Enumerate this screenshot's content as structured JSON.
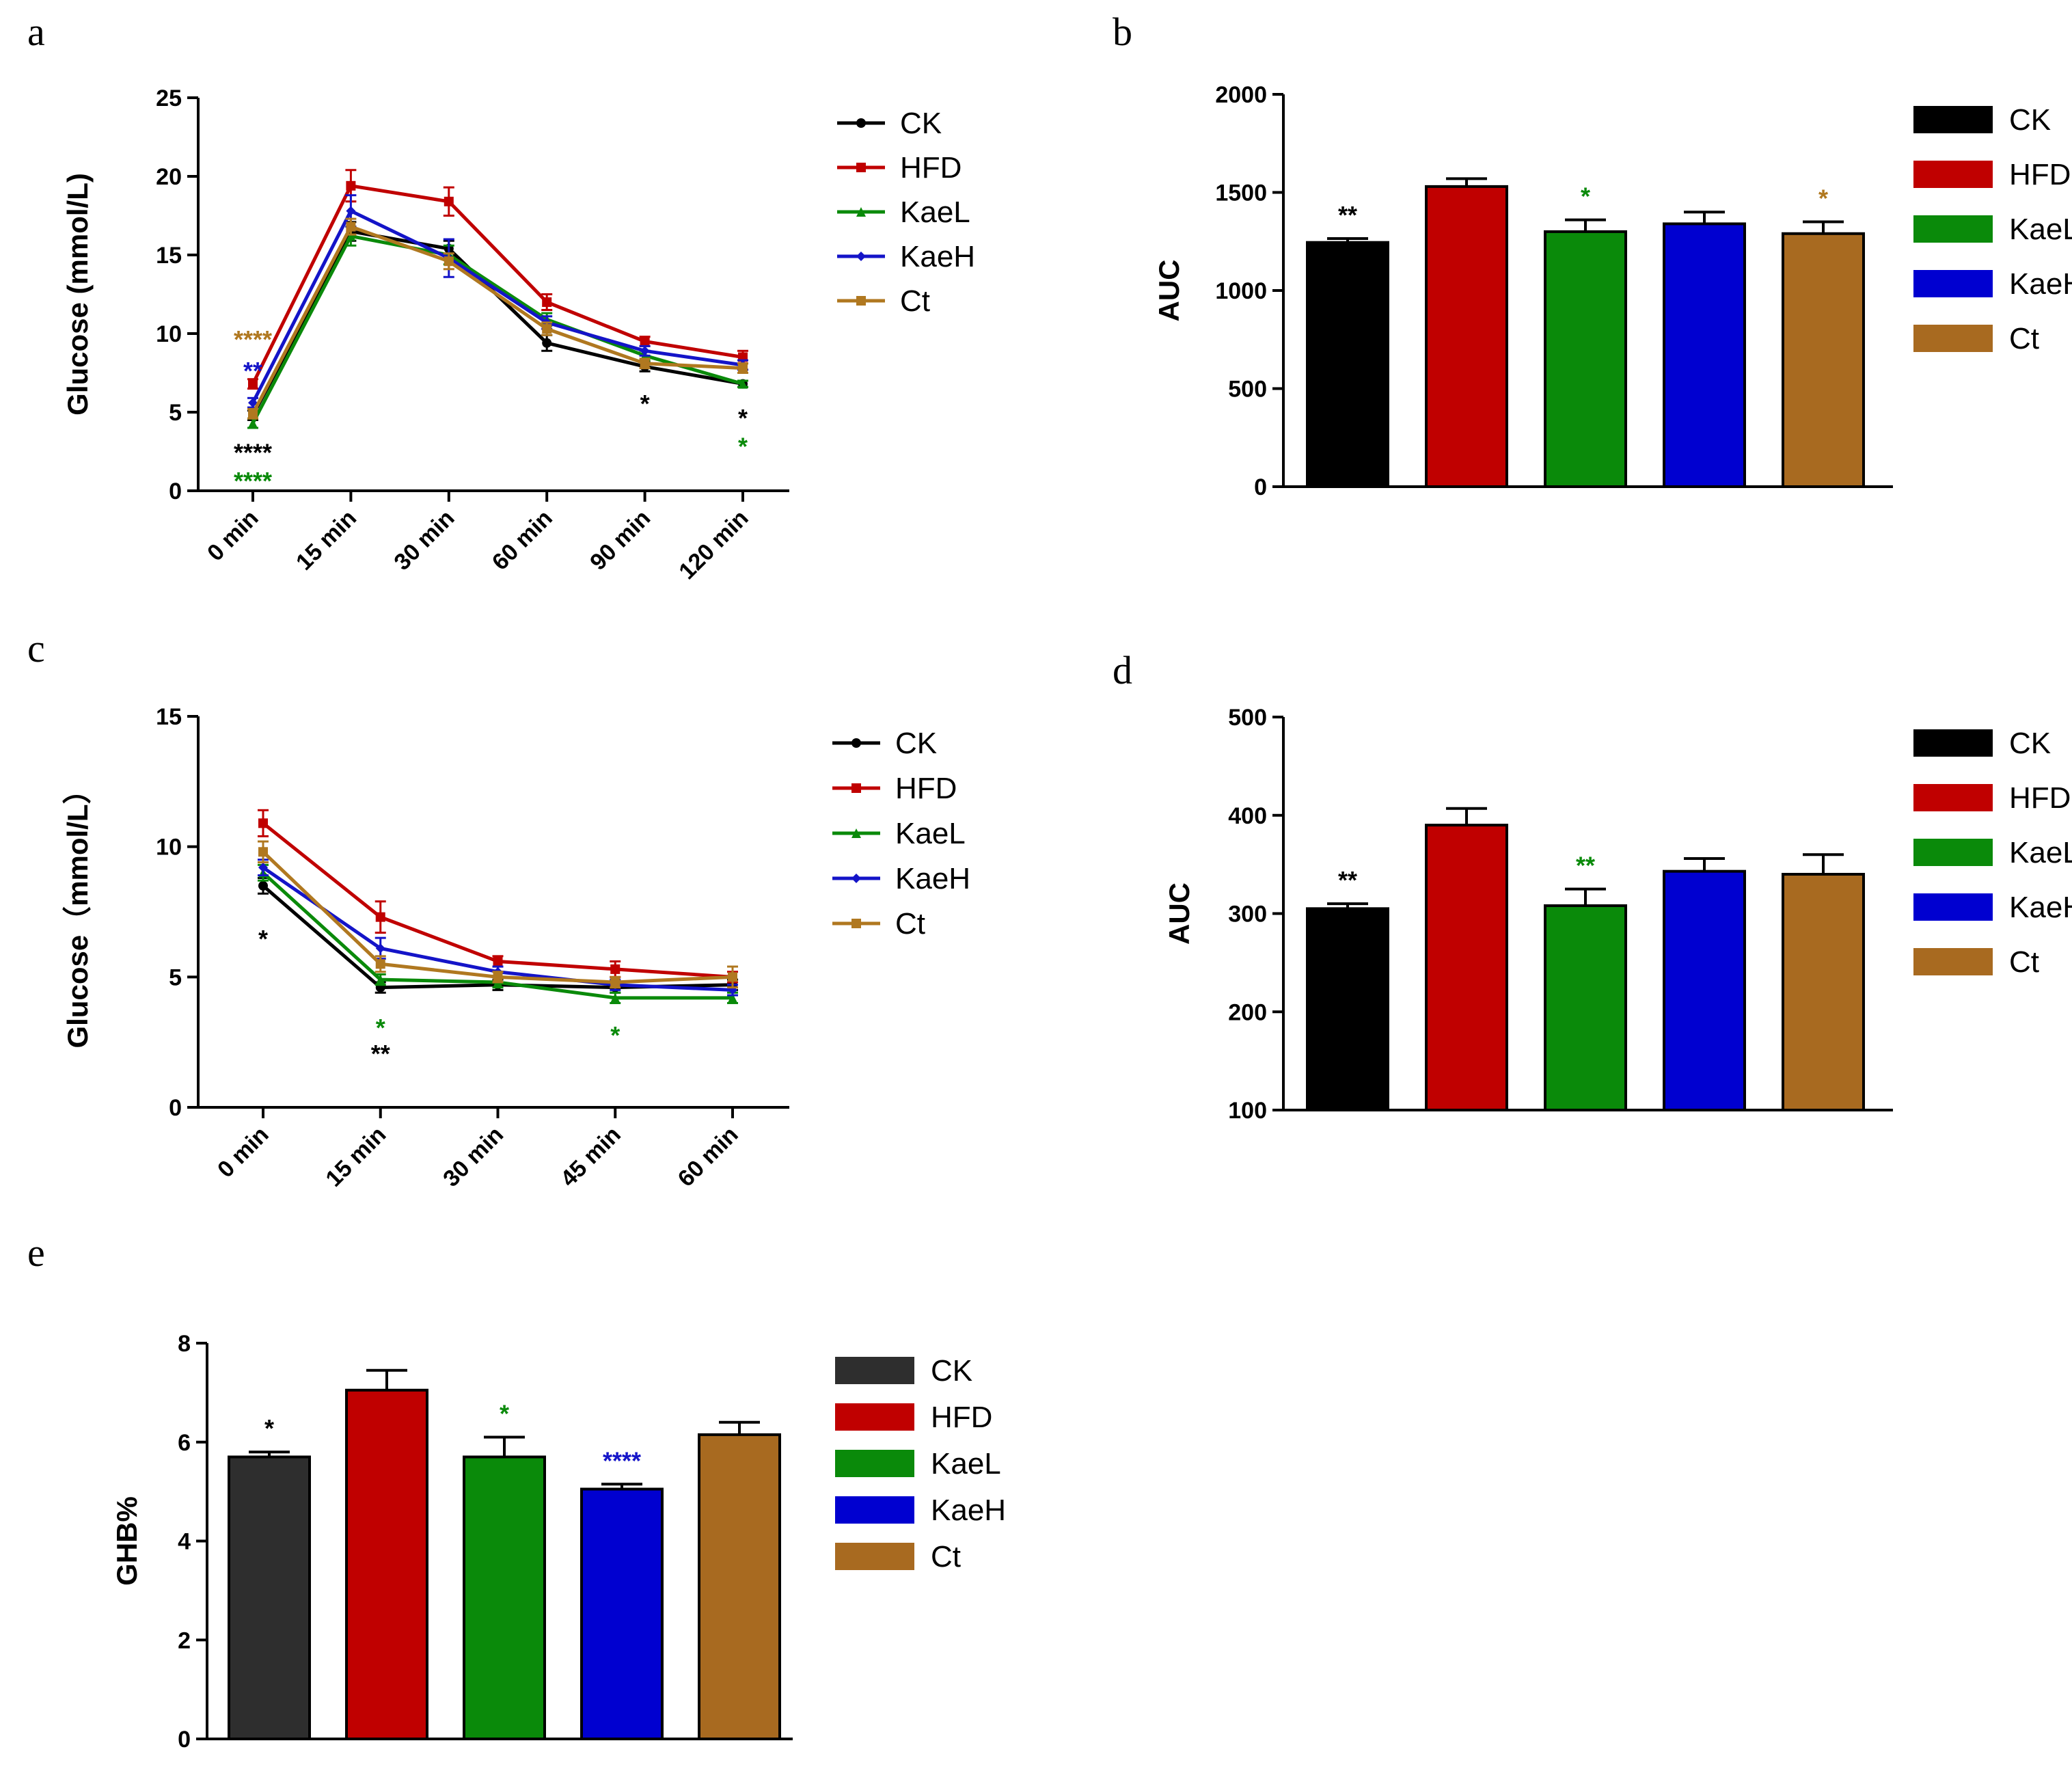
{
  "panel_labels": [
    "a",
    "b",
    "c",
    "d",
    "e"
  ],
  "chart_data": [
    {
      "panel": "a",
      "type": "line",
      "title": "",
      "xlabel": "",
      "ylabel": "Glucose (mmol/L)",
      "categories": [
        "0 min",
        "15 min",
        "30 min",
        "60 min",
        "90 min",
        "120 min"
      ],
      "ylim": [
        0,
        25
      ],
      "yticks": [
        "0",
        "5",
        "10",
        "15",
        "20",
        "25"
      ],
      "series": [
        {
          "name": "CK",
          "color": "#000000",
          "marker": "circle",
          "values": [
            4.8,
            16.5,
            15.4,
            9.4,
            7.9,
            6.8
          ],
          "errors": [
            0.3,
            0.6,
            0.5,
            0.5,
            0.3,
            0.2
          ]
        },
        {
          "name": "HFD",
          "color": "#c00000",
          "marker": "square",
          "values": [
            6.8,
            19.4,
            18.4,
            12.0,
            9.5,
            8.5
          ],
          "errors": [
            0.3,
            1.0,
            0.9,
            0.5,
            0.3,
            0.4
          ]
        },
        {
          "name": "KaeL",
          "color": "#0a8a0a",
          "marker": "triangle",
          "values": [
            4.3,
            16.2,
            15.0,
            10.9,
            8.6,
            6.8
          ],
          "errors": [
            0.3,
            0.6,
            0.6,
            0.4,
            0.3,
            0.2
          ]
        },
        {
          "name": "KaeH",
          "color": "#1414c8",
          "marker": "diamond",
          "values": [
            5.6,
            17.8,
            14.8,
            10.7,
            8.9,
            8.0
          ],
          "errors": [
            0.3,
            1.0,
            1.2,
            0.4,
            0.3,
            0.3
          ]
        },
        {
          "name": "Ct",
          "color": "#b07820",
          "marker": "square",
          "values": [
            4.9,
            16.8,
            14.6,
            10.3,
            8.1,
            7.8
          ],
          "errors": [
            0.3,
            0.5,
            0.5,
            0.4,
            0.3,
            0.3
          ]
        }
      ],
      "annotations": [
        {
          "text": "****",
          "color": "#b07820",
          "category": 0,
          "y": 9.7
        },
        {
          "text": "**",
          "color": "#1414c8",
          "category": 0,
          "y": 7.7
        },
        {
          "text": "****",
          "color": "#000000",
          "category": 0,
          "y": 2.5
        },
        {
          "text": "****",
          "color": "#0a8a0a",
          "category": 0,
          "y": 0.7
        },
        {
          "text": "*",
          "color": "#000000",
          "category": 4,
          "y": 5.6
        },
        {
          "text": "*",
          "color": "#000000",
          "category": 5,
          "y": 4.7
        },
        {
          "text": "*",
          "color": "#0a8a0a",
          "category": 5,
          "y": 2.9
        }
      ]
    },
    {
      "panel": "b",
      "type": "bar",
      "title": "",
      "xlabel": "",
      "ylabel": "AUC",
      "categories": [
        "CK",
        "HFD",
        "KaeL",
        "KaeH",
        "Ct"
      ],
      "values": [
        1245,
        1530,
        1300,
        1340,
        1290
      ],
      "errors": [
        20,
        40,
        60,
        60,
        60
      ],
      "colors": [
        "#000000",
        "#c00000",
        "#0a8a0a",
        "#0000d0",
        "#a86a20"
      ],
      "ylim": [
        0,
        2000
      ],
      "yticks": [
        "0",
        "500",
        "1000",
        "1500",
        "2000"
      ],
      "annotations": [
        {
          "text": "**",
          "color": "#000000",
          "index": 0
        },
        {
          "text": "*",
          "color": "#0a8a0a",
          "index": 2
        },
        {
          "text": "*",
          "color": "#b07820",
          "index": 4
        }
      ]
    },
    {
      "panel": "c",
      "type": "line",
      "title": "",
      "xlabel": "",
      "ylabel": "Glucose（mmol/L）",
      "categories": [
        "0 min",
        "15 min",
        "30 min",
        "45 min",
        "60 min"
      ],
      "ylim": [
        0,
        15
      ],
      "yticks": [
        "0",
        "5",
        "10",
        "15"
      ],
      "series": [
        {
          "name": "CK",
          "color": "#000000",
          "marker": "circle",
          "values": [
            8.5,
            4.6,
            4.7,
            4.6,
            4.7
          ],
          "errors": [
            0.3,
            0.2,
            0.2,
            0.2,
            0.2
          ]
        },
        {
          "name": "HFD",
          "color": "#c00000",
          "marker": "square",
          "values": [
            10.9,
            7.3,
            5.6,
            5.3,
            5.0
          ],
          "errors": [
            0.5,
            0.6,
            0.2,
            0.3,
            0.2
          ]
        },
        {
          "name": "KaeL",
          "color": "#0a8a0a",
          "marker": "triangle",
          "values": [
            9.0,
            4.9,
            4.8,
            4.2,
            4.2
          ],
          "errors": [
            0.3,
            0.2,
            0.2,
            0.2,
            0.2
          ]
        },
        {
          "name": "KaeH",
          "color": "#1414c8",
          "marker": "diamond",
          "values": [
            9.2,
            6.1,
            5.2,
            4.7,
            4.5
          ],
          "errors": [
            0.3,
            0.4,
            0.2,
            0.2,
            0.2
          ]
        },
        {
          "name": "Ct",
          "color": "#b07820",
          "marker": "square",
          "values": [
            9.8,
            5.5,
            5.0,
            4.8,
            5.0
          ],
          "errors": [
            0.4,
            0.3,
            0.2,
            0.2,
            0.4
          ]
        }
      ],
      "annotations": [
        {
          "text": "*",
          "color": "#000000",
          "category": 0,
          "y": 6.5
        },
        {
          "text": "*",
          "color": "#0a8a0a",
          "category": 1,
          "y": 3.1
        },
        {
          "text": "**",
          "color": "#000000",
          "category": 1,
          "y": 2.1
        },
        {
          "text": "*",
          "color": "#0a8a0a",
          "category": 3,
          "y": 2.8
        }
      ]
    },
    {
      "panel": "d",
      "type": "bar",
      "title": "",
      "xlabel": "",
      "ylabel": "AUC",
      "categories": [
        "CK",
        "HFD",
        "KaeL",
        "KaeH",
        "Ct"
      ],
      "values": [
        305,
        390,
        308,
        343,
        340
      ],
      "errors": [
        5,
        17,
        17,
        13,
        20
      ],
      "colors": [
        "#000000",
        "#c00000",
        "#0a8a0a",
        "#0000d0",
        "#a86a20"
      ],
      "ylim": [
        100,
        500
      ],
      "yticks": [
        "100",
        "200",
        "300",
        "400",
        "500"
      ],
      "annotations": [
        {
          "text": "**",
          "color": "#000000",
          "index": 0
        },
        {
          "text": "**",
          "color": "#0a8a0a",
          "index": 2
        }
      ]
    },
    {
      "panel": "e",
      "type": "bar",
      "title": "",
      "xlabel": "",
      "ylabel": "GHB%",
      "categories": [
        "CK",
        "HFD",
        "KaeL",
        "KaeH",
        "Ct"
      ],
      "values": [
        5.7,
        7.05,
        5.7,
        5.05,
        6.15
      ],
      "errors": [
        0.1,
        0.4,
        0.4,
        0.1,
        0.25
      ],
      "colors": [
        "#2e2e2e",
        "#c00000",
        "#0a8a0a",
        "#0000d0",
        "#a86a20"
      ],
      "ylim": [
        0,
        8
      ],
      "yticks": [
        "0",
        "2",
        "4",
        "6",
        "8"
      ],
      "annotations": [
        {
          "text": "*",
          "color": "#000000",
          "index": 0
        },
        {
          "text": "*",
          "color": "#0a8a0a",
          "index": 2
        },
        {
          "text": "****",
          "color": "#1414c8",
          "index": 3
        }
      ]
    }
  ]
}
